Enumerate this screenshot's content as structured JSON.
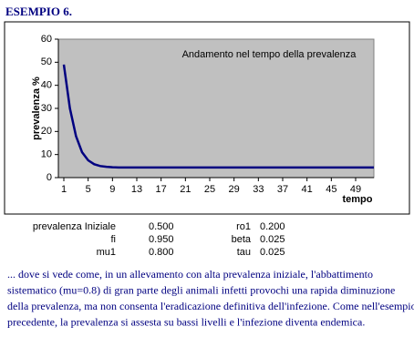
{
  "heading": "ESEMPIO 6.",
  "chart_data": {
    "type": "line",
    "title": "Andamento nel tempo della prevalenza",
    "x_label": "tempo",
    "y_label": "prevalenza %",
    "x": [
      1,
      2,
      3,
      4,
      5,
      6,
      7,
      8,
      9,
      10,
      11,
      12,
      13,
      14,
      15,
      16,
      17,
      18,
      19,
      20,
      21,
      22,
      23,
      24,
      25,
      26,
      27,
      28,
      29,
      30,
      31,
      32,
      33,
      34,
      35,
      36,
      37,
      38,
      39,
      40,
      41,
      42,
      43,
      44,
      45,
      46,
      47,
      48,
      49,
      50,
      51,
      52
    ],
    "values": [
      49,
      30,
      18,
      11,
      7.5,
      5.8,
      5.0,
      4.7,
      4.5,
      4.4,
      4.4,
      4.4,
      4.4,
      4.4,
      4.4,
      4.4,
      4.4,
      4.4,
      4.4,
      4.4,
      4.4,
      4.4,
      4.4,
      4.4,
      4.4,
      4.4,
      4.4,
      4.4,
      4.4,
      4.4,
      4.4,
      4.4,
      4.4,
      4.4,
      4.4,
      4.4,
      4.4,
      4.4,
      4.4,
      4.4,
      4.4,
      4.4,
      4.4,
      4.4,
      4.4,
      4.4,
      4.4,
      4.4,
      4.4,
      4.4,
      4.4,
      4.4
    ],
    "color": "#000080",
    "xlim": [
      0.1,
      52
    ],
    "xticks": [
      1,
      5,
      9,
      13,
      17,
      21,
      25,
      29,
      33,
      37,
      41,
      45,
      49
    ],
    "ylim": [
      0,
      60
    ],
    "yticks": [
      0,
      10,
      20,
      30,
      40,
      50,
      60
    ]
  },
  "parameters": [
    [
      "prevalenza Iniziale",
      "0.500",
      "ro1",
      "0.200"
    ],
    [
      "fi",
      "0.950",
      "beta",
      "0.025"
    ],
    [
      "mu1",
      "0.800",
      "tau",
      "0.025"
    ]
  ],
  "paragraph": [
    "... dove si vede come, in un allevamento con alta prevalenza iniziale, l'abbattimento",
    "sistematico (mu=0.8) di gran parte degli animali infetti  provochi una rapida diminuzione",
    "della prevalenza, ma non  consenta l'eradicazione definitiva dell'infezione. Come nell'esempio",
    "precedente, la prevalenza si assesta su bassi livelli e l'infezione diventa endemica."
  ]
}
